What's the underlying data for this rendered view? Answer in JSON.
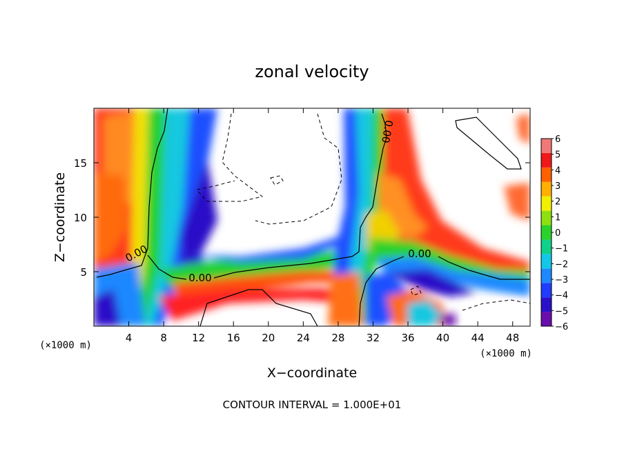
{
  "chart_data": {
    "type": "heatmap",
    "title": "zonal velocity",
    "xlabel": "X−coordinate",
    "ylabel": "Z−coordinate",
    "x_unit_left": "(×1000 m)",
    "x_unit_right": "(×1000 m)",
    "footer": "CONTOUR INTERVAL = 1.000E+01",
    "xlim": [
      0,
      50
    ],
    "ylim": [
      0,
      20
    ],
    "x_ticks": [
      4,
      8,
      12,
      16,
      20,
      24,
      28,
      32,
      36,
      40,
      44,
      48
    ],
    "y_ticks": [
      5,
      10,
      15
    ],
    "colorbar": {
      "ticks": [
        "6",
        "5",
        "4",
        "3",
        "2",
        "1",
        "0",
        "−1",
        "−2",
        "−3",
        "−4",
        "−5",
        "−6"
      ],
      "range": [
        -6,
        6
      ],
      "colors": [
        "#6a0dad",
        "#2a10c8",
        "#1f3cff",
        "#1e88ff",
        "#12c8e8",
        "#10d08a",
        "#2ad22a",
        "#8ee010",
        "#f0f000",
        "#ffb000",
        "#ff6000",
        "#f01818",
        "#f07878"
      ]
    },
    "contour_labels": [
      "0.00",
      "0.00",
      "0.00",
      "0.00"
    ]
  }
}
